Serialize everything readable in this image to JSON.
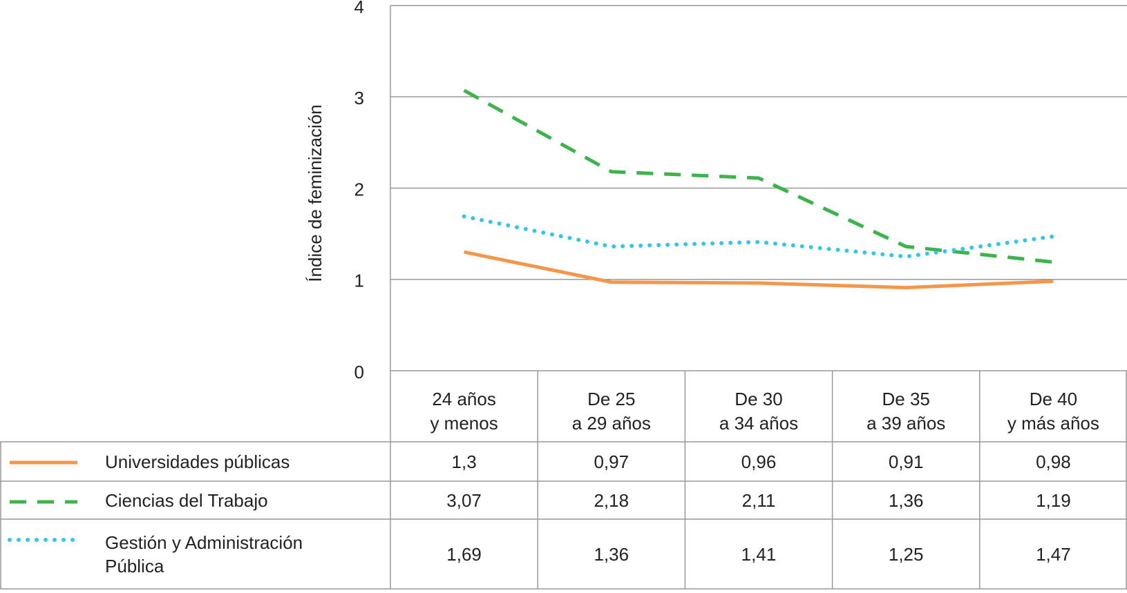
{
  "chart_data": {
    "type": "line",
    "y_label": "Índice de feminización",
    "categories": [
      [
        "24 años",
        "y menos"
      ],
      [
        "De 25",
        "a 29 años"
      ],
      [
        "De 30",
        "a 34 años"
      ],
      [
        "De 35",
        "a 39 años"
      ],
      [
        "De 40",
        "y más años"
      ]
    ],
    "series": [
      {
        "name": "Universidades públicas",
        "color": "#f4964b",
        "style": "solid",
        "values": [
          1.3,
          0.97,
          0.96,
          0.91,
          0.98
        ],
        "value_labels": [
          "1,3",
          "0,97",
          "0,96",
          "0,91",
          "0,98"
        ]
      },
      {
        "name": "Ciencias del Trabajo",
        "color": "#3cb44b",
        "style": "dashed",
        "values": [
          3.07,
          2.18,
          2.11,
          1.36,
          1.19
        ],
        "value_labels": [
          "3,07",
          "2,18",
          "2,11",
          "1,36",
          "1,19"
        ]
      },
      {
        "name": "Gestión y Administración Pública",
        "color": "#35c4ea",
        "style": "dotted",
        "values": [
          1.69,
          1.36,
          1.41,
          1.25,
          1.47
        ],
        "value_labels": [
          "1,69",
          "1,36",
          "1,41",
          "1,25",
          "1,47"
        ]
      }
    ],
    "ylim": [
      0,
      4
    ],
    "yticks": [
      0,
      1,
      2,
      3,
      4
    ],
    "grid": true
  }
}
